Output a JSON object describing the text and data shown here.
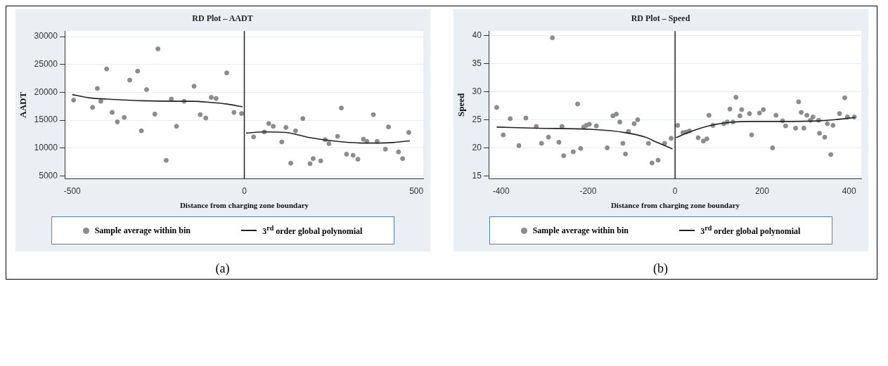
{
  "chart_data": [
    {
      "type": "scatter",
      "title": "RD Plot – AADT",
      "xlabel": "Distance from charging zone boundary",
      "ylabel": "AADT",
      "xlim": [
        -520,
        520
      ],
      "ylim": [
        4500,
        31000
      ],
      "xticks": [
        -500,
        0,
        500
      ],
      "yticks": [
        5000,
        10000,
        15000,
        20000,
        25000,
        30000
      ],
      "grid": "y",
      "legend": "bottom",
      "ref_lines": [
        {
          "axis": "x",
          "value": 0,
          "color": "#222222"
        }
      ],
      "annotations": [
        "(a)"
      ],
      "series": [
        {
          "name": "Sample average within bin",
          "type": "scatter",
          "marker": "circle",
          "color": "#8c8c8c",
          "x": [
            -496,
            -441,
            -427,
            -417,
            -400,
            -384,
            -369,
            -349,
            -333,
            -310,
            -299,
            -284,
            -260,
            -251,
            -227,
            -212,
            -197,
            -175,
            -146,
            -128,
            -112,
            -96,
            -82,
            -51,
            -30,
            -8,
            27,
            58,
            71,
            84,
            109,
            121,
            135,
            149,
            170,
            191,
            200,
            222,
            235,
            246,
            271,
            282,
            297,
            316,
            330,
            346,
            356,
            375,
            386,
            410,
            419,
            448,
            460,
            478
          ],
          "values": [
            18600,
            17300,
            20700,
            18400,
            24200,
            16400,
            14700,
            15500,
            22200,
            23800,
            13100,
            20500,
            16100,
            27800,
            7800,
            18800,
            13900,
            18400,
            21100,
            16000,
            15400,
            19100,
            18900,
            23500,
            16400,
            16200,
            12000,
            12900,
            14400,
            13900,
            11100,
            13700,
            7300,
            13100,
            15300,
            7200,
            8100,
            7700,
            11500,
            10800,
            12100,
            17200,
            8900,
            8700,
            8000,
            11600,
            11200,
            16000,
            11200,
            9800,
            13800,
            9300,
            8100,
            12800
          ]
        },
        {
          "name": "3$^{rd}$ order global polynomial",
          "type": "line",
          "marker": "none",
          "color": "#222222",
          "line_style": "solid",
          "x": [
            -500,
            -450,
            -400,
            -300,
            -200,
            -150,
            -100,
            -50,
            -5,
            0,
            5,
            58,
            120,
            188,
            270,
            352,
            393,
            434,
            481
          ],
          "values": [
            19600,
            19000,
            18800,
            18500,
            18400,
            18400,
            18200,
            17900,
            17400,
            null,
            12700,
            12900,
            12800,
            11900,
            11200,
            10900,
            10900,
            11000,
            11300
          ]
        }
      ]
    },
    {
      "type": "scatter",
      "title": "RD Plot – Speed",
      "xlabel": "Distance from charging zone boundary",
      "ylabel": "Speed",
      "xlim": [
        -427,
        428
      ],
      "ylim": [
        14.5,
        40.8
      ],
      "xticks": [
        -400,
        -200,
        0,
        200,
        400
      ],
      "yticks": [
        15,
        20,
        25,
        30,
        35,
        40
      ],
      "grid": "y",
      "legend": "bottom",
      "ref_lines": [
        {
          "axis": "x",
          "value": 0,
          "color": "#222222"
        }
      ],
      "annotations": [
        "(b)"
      ],
      "series": [
        {
          "name": "Sample average within bin",
          "type": "scatter",
          "marker": "circle",
          "color": "#8c8c8c",
          "x": [
            -410,
            -395,
            -379,
            -359,
            -343,
            -319,
            -307,
            -291,
            -282,
            -267,
            -260,
            -256,
            -234,
            -224,
            -217,
            -210,
            -204,
            -197,
            -181,
            -156,
            -143,
            -135,
            -127,
            -120,
            -114,
            -107,
            -94,
            -86,
            -61,
            -53,
            -39,
            -24,
            -9,
            6,
            18,
            25,
            33,
            53,
            65,
            73,
            78,
            87,
            112,
            120,
            126,
            133,
            140,
            149,
            153,
            171,
            176,
            194,
            203,
            224,
            232,
            247,
            254,
            277,
            284,
            290,
            296,
            303,
            311,
            317,
            330,
            332,
            344,
            350,
            358,
            363,
            378,
            390,
            396,
            412
          ],
          "values": [
            27.2,
            22.3,
            25.2,
            20.4,
            25.3,
            23.8,
            20.8,
            21.9,
            39.6,
            21.0,
            23.8,
            18.6,
            19.3,
            27.8,
            19.9,
            23.7,
            24.0,
            24.2,
            23.9,
            20.0,
            25.7,
            26.0,
            24.6,
            20.8,
            18.9,
            22.9,
            24.3,
            25.0,
            20.8,
            17.3,
            17.8,
            20.8,
            21.7,
            24.0,
            22.7,
            22.8,
            23.0,
            21.8,
            21.2,
            21.6,
            25.8,
            24.0,
            24.3,
            24.6,
            26.9,
            24.6,
            29.0,
            25.7,
            26.8,
            26.1,
            22.3,
            26.2,
            26.8,
            20.0,
            25.8,
            24.8,
            23.9,
            23.5,
            28.2,
            26.3,
            23.5,
            25.8,
            24.9,
            25.5,
            24.9,
            22.6,
            21.9,
            24.3,
            18.8,
            24.0,
            26.1,
            28.9,
            25.5,
            25.5
          ]
        },
        {
          "name": "3$^{rd}$ order global polynomial",
          "type": "line",
          "marker": "none",
          "color": "#222222",
          "line_style": "solid",
          "x": [
            -410,
            -319,
            -195,
            -114,
            -68,
            -45,
            -6,
            0,
            2,
            36,
            82,
            134,
            180,
            249,
            330,
            365,
            414
          ],
          "values": [
            23.7,
            23.5,
            23.3,
            22.7,
            21.9,
            21.1,
            19.8,
            null,
            21.8,
            22.9,
            24.0,
            24.6,
            24.7,
            24.7,
            24.8,
            25.0,
            25.4
          ]
        }
      ]
    }
  ]
}
